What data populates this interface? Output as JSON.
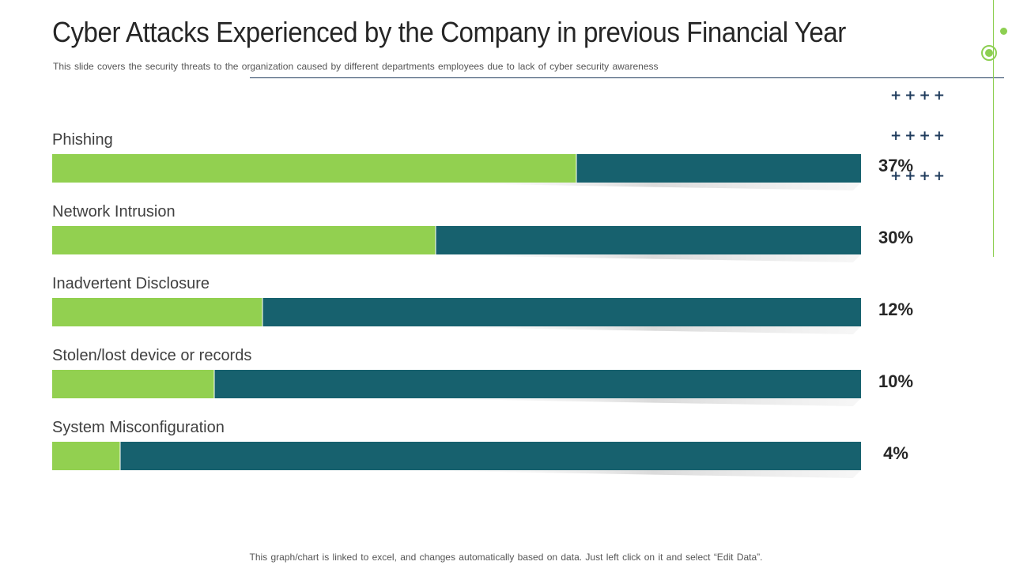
{
  "title": "Cyber Attacks Experienced by the Company in previous Financial Year",
  "subtitle": "This slide covers the security threats to the organization caused by different departments employees due to lack of cyber security awareness",
  "footer": "This graph/chart is linked to excel, and changes automatically based on data. Just left click on it and select “Edit Data”.",
  "colors": {
    "green": "#92d050",
    "teal": "#17616e",
    "accent": "#8dcf51",
    "navy": "#1f3b5c"
  },
  "decor": {
    "plus_rows": [
      "++++",
      "++++",
      "++++"
    ]
  },
  "chart_data": {
    "type": "bar",
    "orientation": "horizontal",
    "stacked": "100%",
    "categories": [
      "Phishing",
      "Network Intrusion",
      "Inadvertent Disclosure",
      "Stolen/lost device or records",
      "System Misconfiguration"
    ],
    "values": [
      37,
      30,
      12,
      10,
      4
    ],
    "value_labels": [
      "37%",
      "30%",
      "12%",
      "10%",
      "4%"
    ],
    "green_fraction_of_bar": [
      0.648,
      0.474,
      0.26,
      0.2,
      0.084
    ],
    "series_colors": [
      "#92d050",
      "#17616e"
    ]
  }
}
